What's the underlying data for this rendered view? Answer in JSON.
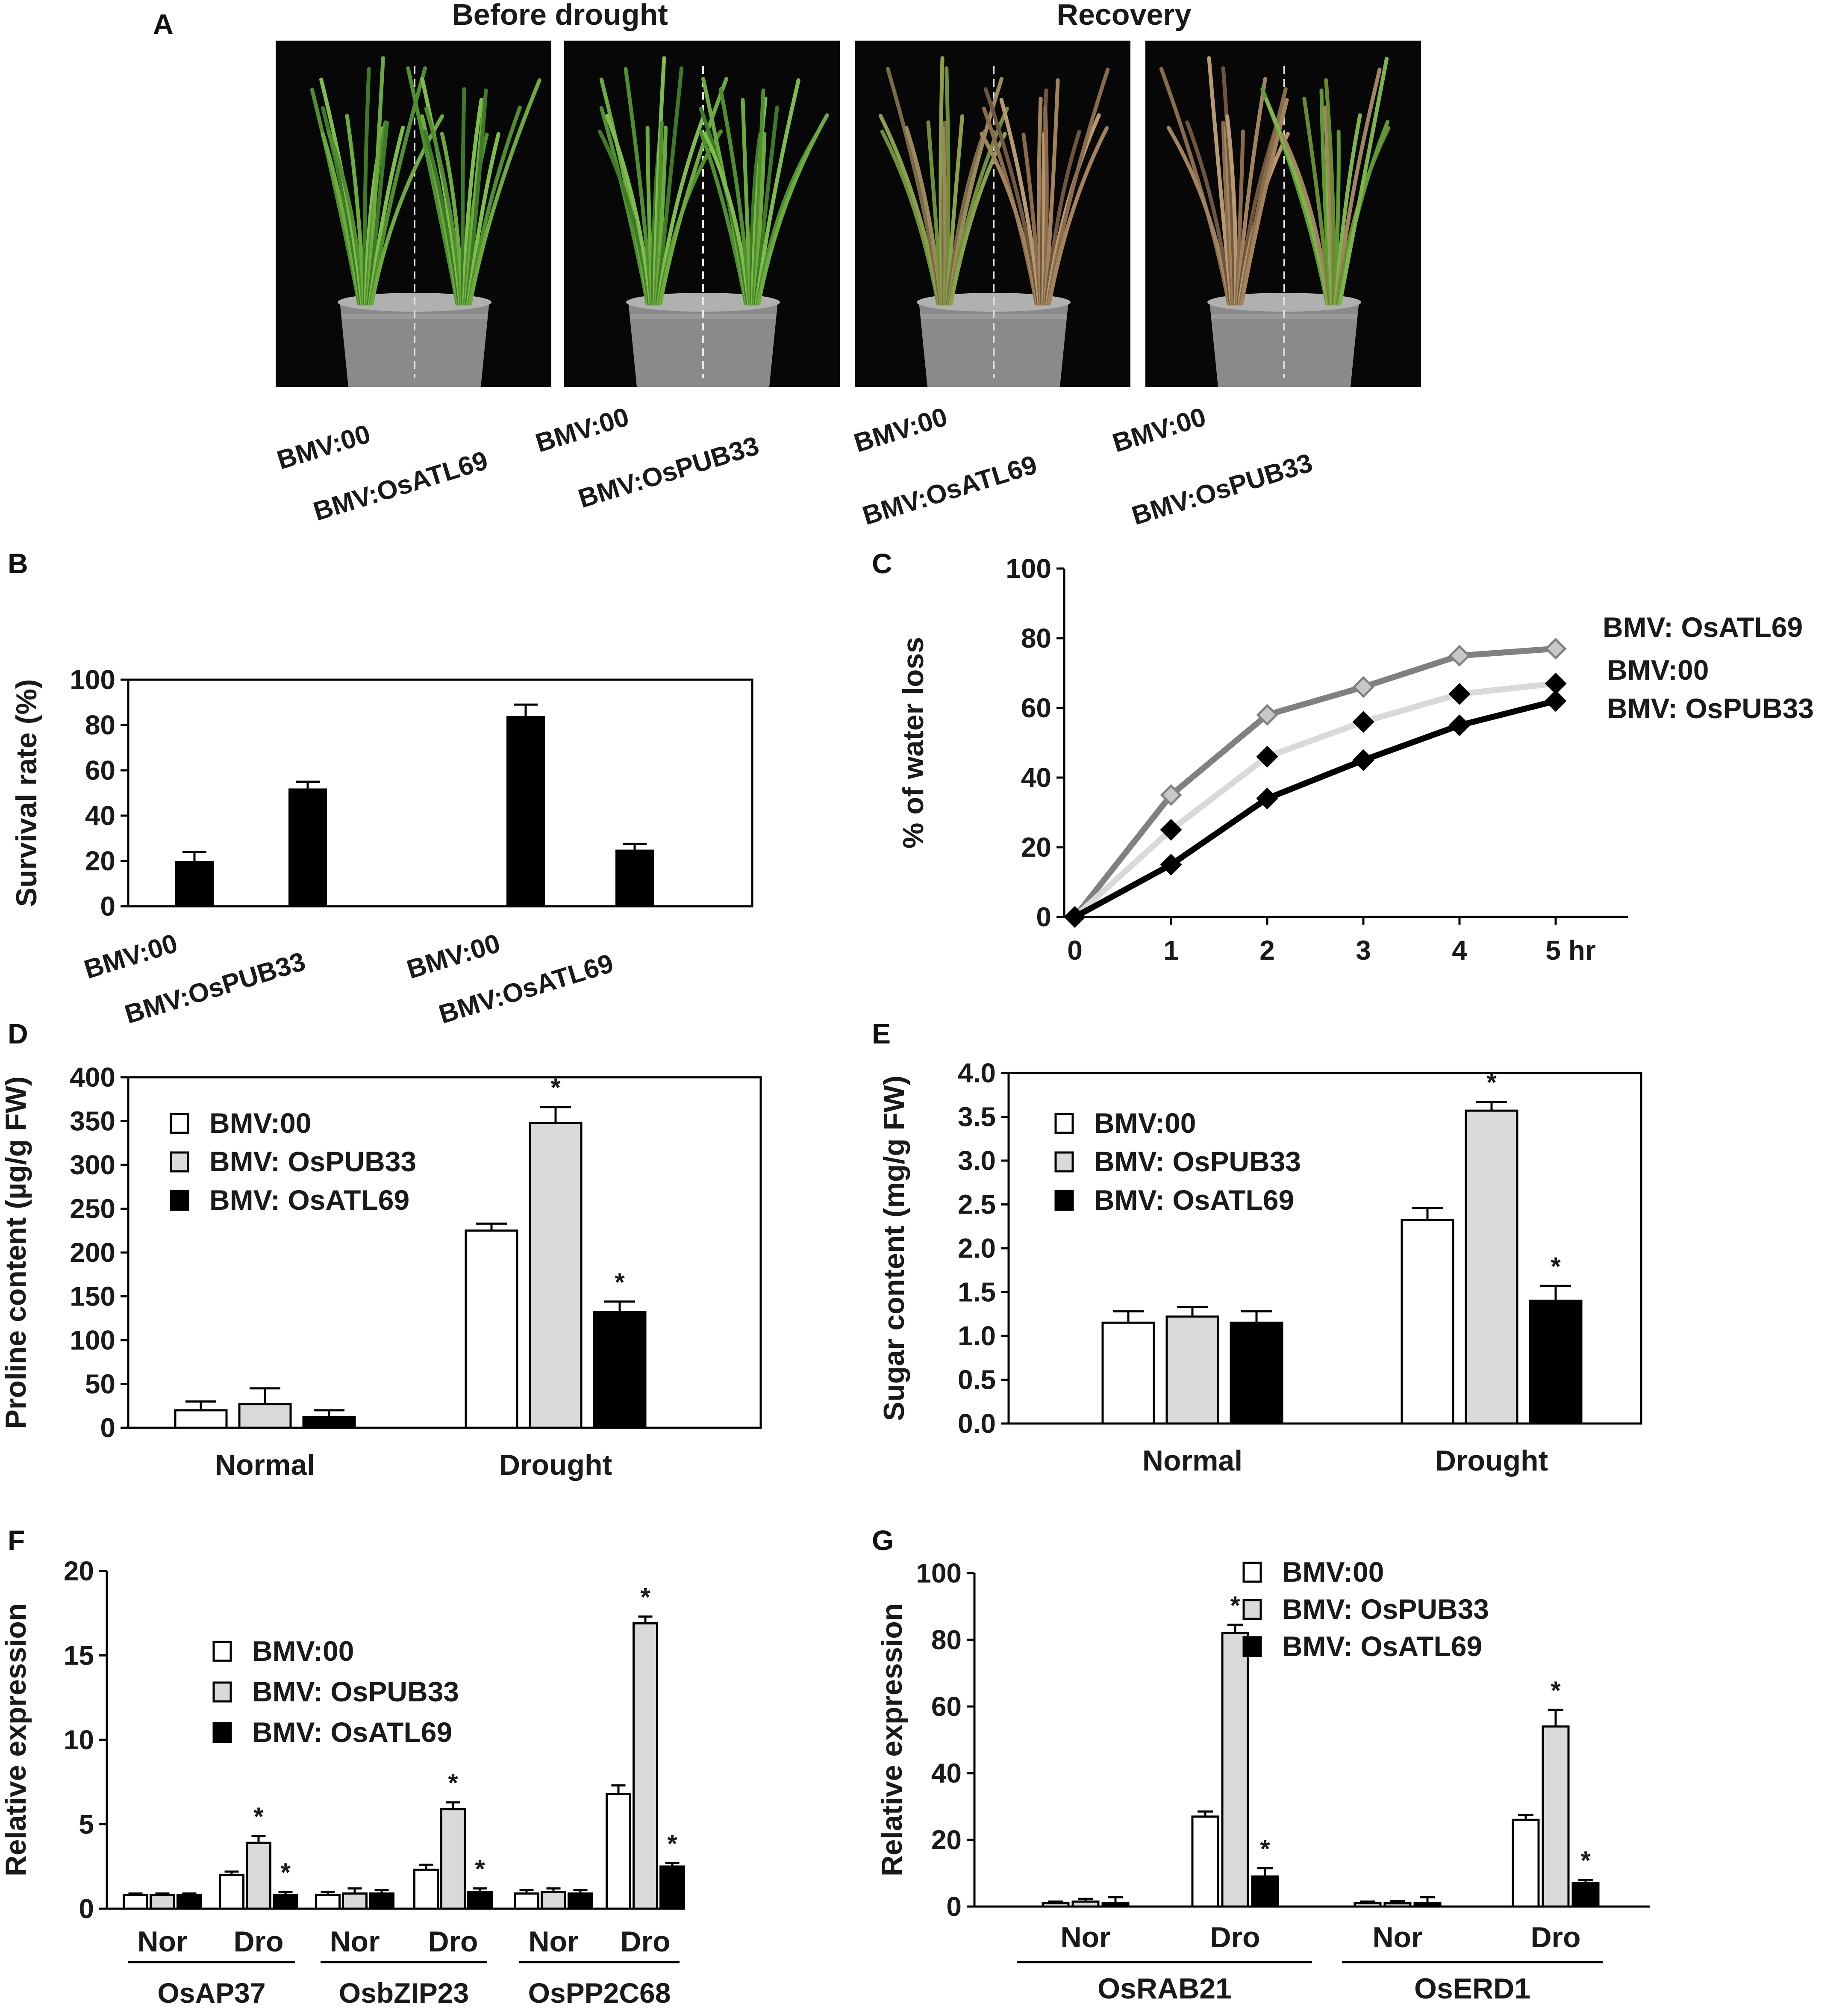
{
  "panel_letters": [
    "A",
    "B",
    "C",
    "D",
    "E",
    "F",
    "G"
  ],
  "panel_a": {
    "headings": {
      "before": "Before drought",
      "recovery": "Recovery"
    },
    "photos": [
      {
        "labels": [
          "BMV:00",
          "BMV:OsATL69"
        ],
        "state": "before"
      },
      {
        "labels": [
          "BMV:00",
          "BMV:OsPUB33"
        ],
        "state": "before"
      },
      {
        "labels": [
          "BMV:00",
          "BMV:OsATL69"
        ],
        "state": "recovery"
      },
      {
        "labels": [
          "BMV:00",
          "BMV:OsPUB33"
        ],
        "state": "recovery"
      }
    ]
  },
  "chart_data": [
    {
      "id": "B",
      "type": "bar",
      "ylabel": "Survival rate (%)",
      "ylim": [
        0,
        100
      ],
      "yticks": [
        0,
        20,
        40,
        60,
        80,
        100
      ],
      "categories": [
        "BMV:00",
        "BMV:OsPUB33",
        "BMV:00",
        "BMV:OsATL69"
      ],
      "values": [
        20,
        52,
        84,
        25
      ],
      "errors": [
        4,
        3,
        5,
        2.5
      ],
      "color": "#000000"
    },
    {
      "id": "C",
      "type": "line",
      "ylabel": "% of water loss",
      "ylim": [
        0,
        100
      ],
      "yticks": [
        0,
        20,
        40,
        60,
        80,
        100
      ],
      "x": [
        0,
        1,
        2,
        3,
        4,
        5
      ],
      "xticklabels": [
        "0",
        "1",
        "2",
        "3",
        "4",
        "5 hr"
      ],
      "series": [
        {
          "name": "BMV: OsATL69",
          "values": [
            0,
            35,
            58,
            66,
            75,
            77
          ],
          "color": "#808080"
        },
        {
          "name": "BMV:00",
          "values": [
            0,
            25,
            46,
            56,
            64,
            67
          ],
          "color": "#d9d9d9"
        },
        {
          "name": "BMV: OsPUB33",
          "values": [
            0,
            15,
            34,
            45,
            55,
            62
          ],
          "color": "#000000"
        }
      ]
    },
    {
      "id": "D",
      "type": "bar",
      "ylabel": "Proline content (µg/g FW)",
      "ylim": [
        0,
        400
      ],
      "yticks": [
        0,
        50,
        100,
        150,
        200,
        250,
        300,
        350,
        400
      ],
      "categories": [
        "Normal",
        "Drought"
      ],
      "series": [
        {
          "name": "BMV:00",
          "values": [
            20,
            225
          ],
          "errors": [
            10,
            8
          ],
          "color": "#ffffff",
          "stars": [
            false,
            false
          ]
        },
        {
          "name": "BMV: OsPUB33",
          "values": [
            27,
            348
          ],
          "errors": [
            18,
            18
          ],
          "color": "#d9d9d9",
          "stars": [
            false,
            true
          ]
        },
        {
          "name": "BMV: OsATL69",
          "values": [
            12,
            132
          ],
          "errors": [
            8,
            12
          ],
          "color": "#000000",
          "stars": [
            false,
            true
          ]
        }
      ]
    },
    {
      "id": "E",
      "type": "bar",
      "ylabel": "Sugar content (mg/g FW)",
      "ylim": [
        0,
        4.0
      ],
      "yticks": [
        "0.0",
        "0.5",
        "1.0",
        "1.5",
        "2.0",
        "2.5",
        "3.0",
        "3.5",
        "4.0"
      ],
      "categories": [
        "Normal",
        "Drought"
      ],
      "series": [
        {
          "name": "BMV:00",
          "values": [
            1.15,
            2.32
          ],
          "errors": [
            0.13,
            0.14
          ],
          "color": "#ffffff",
          "stars": [
            false,
            false
          ]
        },
        {
          "name": "BMV: OsPUB33",
          "values": [
            1.22,
            3.57
          ],
          "errors": [
            0.11,
            0.1
          ],
          "color": "#d9d9d9",
          "stars": [
            false,
            true
          ]
        },
        {
          "name": "BMV: OsATL69",
          "values": [
            1.15,
            1.4
          ],
          "errors": [
            0.13,
            0.17
          ],
          "color": "#000000",
          "stars": [
            false,
            true
          ]
        }
      ]
    },
    {
      "id": "F",
      "type": "bar",
      "ylabel": "Relative expression",
      "ylim": [
        0,
        20
      ],
      "yticks": [
        0,
        5,
        10,
        15,
        20
      ],
      "categories": [
        "Nor",
        "Dro",
        "Nor",
        "Dro",
        "Nor",
        "Dro"
      ],
      "groups": [
        "OsAP37",
        "OsbZIP23",
        "OsPP2C68"
      ],
      "series": [
        {
          "name": "BMV:00",
          "values": [
            0.8,
            2.0,
            0.8,
            2.3,
            0.9,
            6.8
          ],
          "errors": [
            0.1,
            0.2,
            0.2,
            0.3,
            0.2,
            0.5
          ],
          "color": "#ffffff",
          "stars": [
            false,
            false,
            false,
            false,
            false,
            false
          ]
        },
        {
          "name": "BMV: OsPUB33",
          "values": [
            0.8,
            3.9,
            0.9,
            5.9,
            1.0,
            16.9
          ],
          "errors": [
            0.1,
            0.4,
            0.3,
            0.4,
            0.2,
            0.4
          ],
          "color": "#d9d9d9",
          "stars": [
            false,
            true,
            false,
            true,
            false,
            true
          ]
        },
        {
          "name": "BMV: OsATL69",
          "values": [
            0.8,
            0.8,
            0.9,
            1.0,
            0.9,
            2.5
          ],
          "errors": [
            0.1,
            0.2,
            0.2,
            0.2,
            0.2,
            0.2
          ],
          "color": "#000000",
          "stars": [
            false,
            true,
            false,
            true,
            false,
            true
          ]
        }
      ]
    },
    {
      "id": "G",
      "type": "bar",
      "ylabel": "Relative expression",
      "ylim": [
        0,
        100
      ],
      "yticks": [
        0,
        20,
        40,
        60,
        80,
        100
      ],
      "categories": [
        "Nor",
        "Dro",
        "Nor",
        "Dro"
      ],
      "groups": [
        "OsRAB21",
        "OsERD1"
      ],
      "series": [
        {
          "name": "BMV:00",
          "values": [
            1,
            27,
            1,
            26
          ],
          "errors": [
            0.5,
            1.5,
            0.5,
            1.5
          ],
          "color": "#ffffff",
          "stars": [
            false,
            false,
            false,
            false
          ]
        },
        {
          "name": "BMV: OsPUB33",
          "values": [
            1.5,
            82,
            1,
            54
          ],
          "errors": [
            0.8,
            2.5,
            0.6,
            5
          ],
          "color": "#d9d9d9",
          "stars": [
            false,
            true,
            false,
            true
          ]
        },
        {
          "name": "BMV: OsATL69",
          "values": [
            1,
            9,
            1,
            7
          ],
          "errors": [
            1.8,
            2.5,
            1.8,
            1.0
          ],
          "color": "#000000",
          "stars": [
            false,
            true,
            false,
            true
          ]
        }
      ]
    }
  ]
}
